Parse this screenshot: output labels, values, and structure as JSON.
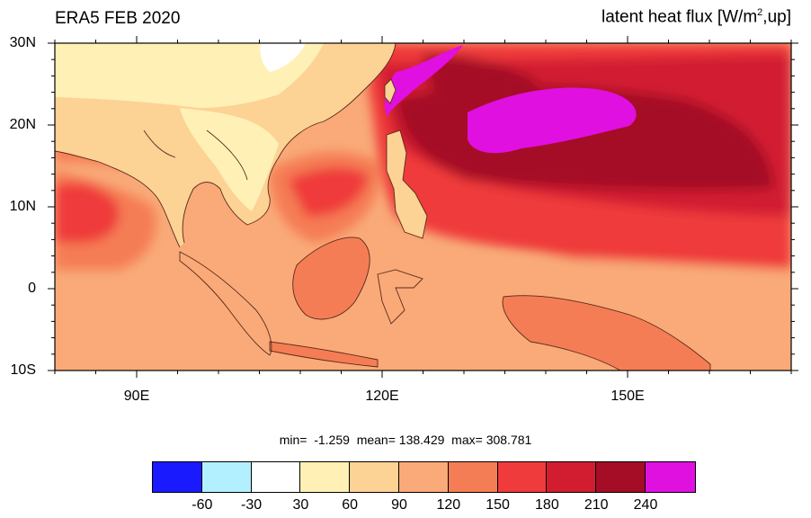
{
  "title_left": "ERA5 FEB 2020",
  "title_right": {
    "main": "latent heat flux [W/m",
    "sup": "2",
    "tail": ",up]"
  },
  "lat_labels": [
    "30N",
    "20N",
    "10N",
    "0",
    "10S"
  ],
  "lon_labels": [
    "90E",
    "120E",
    "150E"
  ],
  "stats": {
    "min_label": "min=",
    "min": "-1.259",
    "mean_label": "mean=",
    "mean": "138.429",
    "max_label": "max=",
    "max": "308.781"
  },
  "colorbar": {
    "colors": [
      "#1a1aff",
      "#b3f0ff",
      "#ffffff",
      "#fff0b5",
      "#fdd295",
      "#f9aa78",
      "#f57d55",
      "#ef3b3b",
      "#d21d30",
      "#a50d26",
      "#e010e0"
    ],
    "labels": [
      "-60",
      "-30",
      "30",
      "60",
      "90",
      "120",
      "150",
      "180",
      "210",
      "240"
    ]
  },
  "map": {
    "region": {
      "lon_min": 80,
      "lon_max": 170,
      "lat_min": -10,
      "lat_max": 30
    },
    "background_color": "#f9aa78",
    "land_color": "#fdd295",
    "cold_land_color": "#fff0b5"
  }
}
